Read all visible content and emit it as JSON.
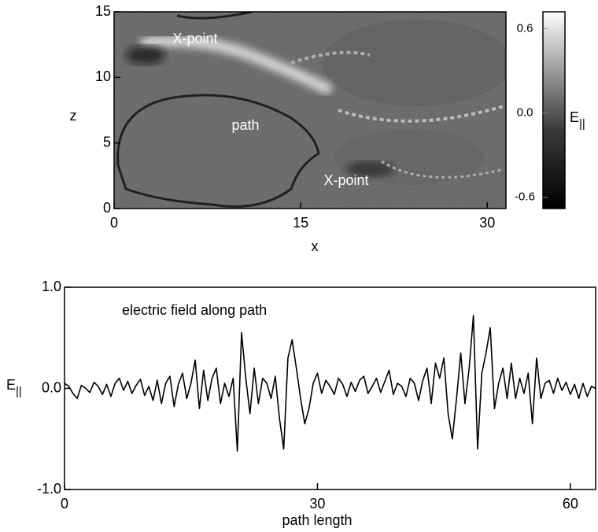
{
  "chart_data": [
    {
      "type": "image",
      "xlabel": "x",
      "ylabel": "z",
      "xlim": [
        0,
        31.5
      ],
      "xticks": [
        0,
        15,
        30
      ],
      "ylim": [
        0,
        15
      ],
      "yticks": [
        0,
        5,
        10,
        15
      ],
      "annotations": [
        "X-point",
        "path",
        "X-point"
      ],
      "colorbar_label": "E",
      "colorbar_label_sub": "||",
      "clim": [
        -0.68,
        0.72
      ],
      "cticks": [
        0.6,
        {
          "value": 0,
          "label": "0.0"
        },
        -0.6
      ]
    },
    {
      "type": "line",
      "annotation": "electric field along path",
      "xlabel": "path length",
      "ylabel": "E",
      "ylabel_sub": "||",
      "xlim": [
        0,
        63
      ],
      "xticks": [
        0,
        30,
        60
      ],
      "ylim": [
        -1,
        1
      ],
      "yticks": [
        {
          "value": -1,
          "label": "-1.0"
        },
        {
          "value": 0,
          "label": "0.0"
        },
        {
          "value": 1,
          "label": "1.0"
        }
      ],
      "color": "#000000",
      "x": [
        0,
        0.5,
        1,
        1.5,
        2,
        2.5,
        3,
        3.5,
        4,
        4.5,
        5,
        5.5,
        6,
        6.5,
        7,
        7.5,
        8,
        8.5,
        9,
        9.5,
        10,
        10.5,
        11,
        11.5,
        12,
        12.5,
        13,
        13.5,
        14,
        14.5,
        15,
        15.5,
        16,
        16.5,
        17,
        17.5,
        18,
        18.5,
        19,
        19.5,
        20,
        20.5,
        21,
        21.5,
        22,
        22.5,
        23,
        23.5,
        24,
        24.5,
        25,
        25.5,
        26,
        26.5,
        27,
        27.5,
        28,
        28.5,
        29,
        29.5,
        30,
        30.5,
        31,
        31.5,
        32,
        32.5,
        33,
        33.5,
        34,
        34.5,
        35,
        35.5,
        36,
        36.5,
        37,
        37.5,
        38,
        38.5,
        39,
        39.5,
        40,
        40.5,
        41,
        41.5,
        42,
        42.5,
        43,
        43.5,
        44,
        44.5,
        45,
        45.5,
        46,
        46.5,
        47,
        47.5,
        48,
        48.5,
        49,
        49.5,
        50,
        50.5,
        51,
        51.5,
        52,
        52.5,
        53,
        53.5,
        54,
        54.5,
        55,
        55.5,
        56,
        56.5,
        57,
        57.5,
        58,
        58.5,
        59,
        59.5,
        60,
        60.5,
        61,
        61.5,
        62,
        62.5,
        63
      ],
      "values": [
        0.05,
        0.02,
        -0.05,
        -0.1,
        0.03,
        0.0,
        -0.04,
        0.06,
        0.02,
        -0.06,
        0.04,
        -0.08,
        0.05,
        0.1,
        -0.02,
        0.07,
        -0.05,
        0.03,
        0.09,
        -0.07,
        0.02,
        -0.12,
        0.08,
        -0.15,
        0.05,
        0.12,
        -0.18,
        0.04,
        0.15,
        -0.1,
        0.05,
        0.28,
        -0.2,
        0.18,
        -0.12,
        0.1,
        0.2,
        -0.15,
        0.05,
        -0.08,
        0.1,
        -0.62,
        0.55,
        0.1,
        -0.25,
        0.2,
        -0.15,
        0.1,
        0.05,
        -0.1,
        0.12,
        -0.3,
        -0.6,
        0.3,
        0.48,
        0.2,
        -0.1,
        -0.35,
        -0.2,
        0.05,
        0.15,
        -0.05,
        0.08,
        0.02,
        -0.06,
        0.1,
        0.04,
        -0.08,
        0.06,
        -0.03,
        0.08,
        0.12,
        -0.05,
        0.02,
        0.1,
        -0.04,
        0.07,
        0.18,
        -0.06,
        0.05,
        0.02,
        -0.08,
        0.1,
        0.05,
        -0.12,
        0.08,
        0.2,
        -0.15,
        0.25,
        0.1,
        0.3,
        -0.25,
        -0.5,
        -0.1,
        0.35,
        -0.15,
        0.2,
        0.72,
        -0.6,
        0.15,
        0.35,
        0.6,
        -0.2,
        0.05,
        0.2,
        -0.1,
        0.25,
        -0.1,
        0.1,
        -0.05,
        0.15,
        -0.35,
        0.3,
        -0.1,
        0.05,
        0.08,
        -0.05,
        0.1,
        -0.02,
        0.06,
        -0.06,
        0.04,
        -0.1,
        0.05,
        -0.08,
        0.02,
        0.0
      ]
    }
  ]
}
